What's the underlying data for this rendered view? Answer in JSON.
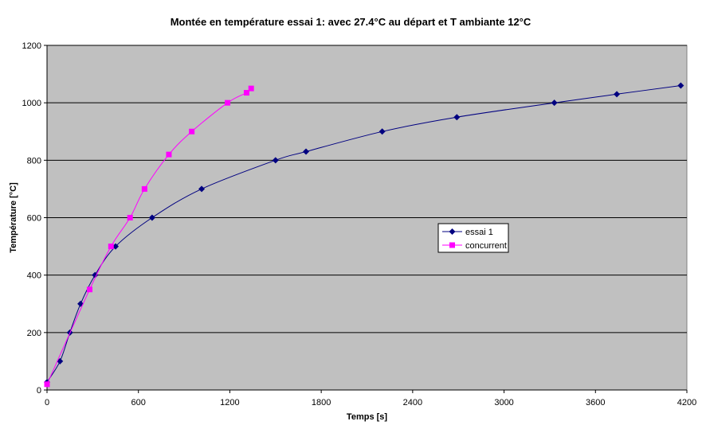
{
  "chart_data": {
    "type": "scatter",
    "title": "Montée en température essai 1: avec 27.4°C au départ et T ambiante 12°C",
    "xlabel": "Temps [s]",
    "ylabel": "Température [°C]",
    "xlim": [
      0,
      4200
    ],
    "ylim": [
      0,
      1200
    ],
    "xticks": [
      0,
      600,
      1200,
      1800,
      2400,
      3000,
      3600,
      4200
    ],
    "yticks": [
      0,
      200,
      400,
      600,
      800,
      1000,
      1200
    ],
    "grid": "horizontal",
    "legend_position": "right",
    "colors": {
      "plot_background": "#c0c0c0",
      "gridline": "#000000"
    },
    "series": [
      {
        "name": "essai 1",
        "color": "#000080",
        "marker": "diamond",
        "x": [
          0,
          85,
          150,
          220,
          315,
          450,
          690,
          1015,
          1500,
          1700,
          2200,
          2690,
          3330,
          3740,
          4160
        ],
        "y": [
          27.4,
          100,
          200,
          300,
          400,
          500,
          600,
          700,
          800,
          830,
          900,
          950,
          1000,
          1030,
          1060
        ]
      },
      {
        "name": "concurrent",
        "color": "#ff00ff",
        "marker": "square",
        "x": [
          0,
          280,
          420,
          545,
          640,
          800,
          950,
          1185,
          1310,
          1340
        ],
        "y": [
          20,
          350,
          500,
          600,
          700,
          820,
          900,
          1000,
          1035,
          1050
        ]
      }
    ]
  }
}
